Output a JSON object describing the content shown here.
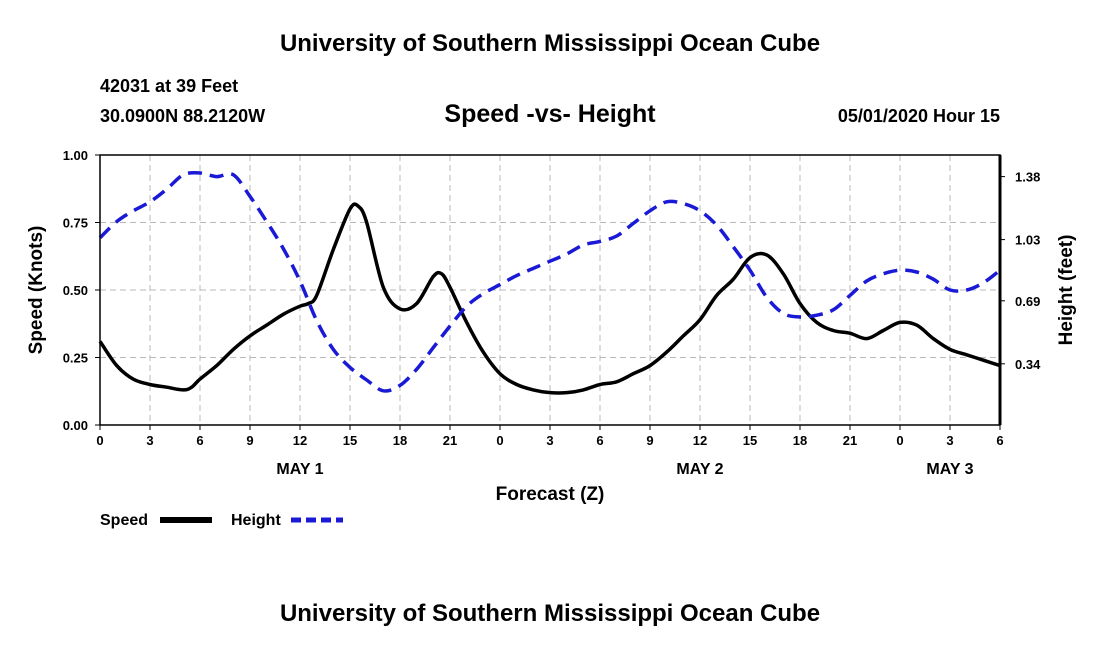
{
  "header": {
    "title": "University of Southern Mississippi Ocean Cube",
    "station": "42031 at 39 Feet",
    "coords": "30.0900N 88.2120W",
    "chart_title": "Speed -vs- Height",
    "datetime": "05/01/2020 Hour 15"
  },
  "footer": {
    "title": "University of Southern Mississippi Ocean Cube"
  },
  "colors": {
    "speed": "#000000",
    "height": "#1a1ad6",
    "grid": "#b8b8b8"
  },
  "chart_data": {
    "type": "line",
    "title": "Speed -vs- Height",
    "xlabel": "Forecast (Z)",
    "ylabel_left": "Speed (Knots)",
    "ylabel_right": "Height (feet)",
    "x_range": [
      0,
      54
    ],
    "x_tick_values": [
      0,
      3,
      6,
      9,
      12,
      15,
      18,
      21,
      24,
      27,
      30,
      33,
      36,
      39,
      42,
      45,
      48,
      51,
      54
    ],
    "x_tick_labels": [
      "0",
      "3",
      "6",
      "9",
      "12",
      "15",
      "18",
      "21",
      "0",
      "3",
      "6",
      "9",
      "12",
      "15",
      "18",
      "21",
      "0",
      "3",
      "6"
    ],
    "day_labels": [
      {
        "label": "MAY 1",
        "x": 12
      },
      {
        "label": "MAY 2",
        "x": 36
      },
      {
        "label": "MAY 3",
        "x": 51
      }
    ],
    "y_left_range": [
      0,
      1
    ],
    "y_left_ticks": [
      "0.00",
      "0.25",
      "0.50",
      "0.75",
      "1.00"
    ],
    "y_left_tick_values": [
      0,
      0.25,
      0.5,
      0.75,
      1.0
    ],
    "y_right_range": [
      0,
      1.5
    ],
    "y_right_ticks": [
      "0.34",
      "0.69",
      "1.03",
      "1.38"
    ],
    "y_right_tick_values": [
      0.34,
      0.69,
      1.03,
      1.38
    ],
    "grid": true,
    "legend": [
      "Speed",
      "Height"
    ],
    "series": [
      {
        "name": "Speed",
        "axis": "left",
        "style": "solid",
        "x": [
          0,
          1,
          2,
          3,
          4,
          5,
          5.5,
          6,
          7,
          8,
          9,
          10,
          11,
          12,
          12.5,
          13,
          14,
          15,
          15.5,
          16,
          17,
          18,
          19,
          20,
          20.5,
          21,
          22,
          23,
          24,
          25,
          26,
          27,
          28,
          29,
          30,
          31,
          32,
          33,
          34,
          35,
          36,
          37,
          38,
          39,
          40,
          41,
          42,
          43,
          44,
          45,
          46,
          47,
          48,
          49,
          50,
          51,
          52,
          53,
          54
        ],
        "values": [
          0.31,
          0.22,
          0.17,
          0.15,
          0.14,
          0.13,
          0.14,
          0.17,
          0.22,
          0.28,
          0.33,
          0.37,
          0.41,
          0.44,
          0.45,
          0.48,
          0.65,
          0.8,
          0.81,
          0.75,
          0.51,
          0.43,
          0.45,
          0.55,
          0.56,
          0.51,
          0.38,
          0.27,
          0.19,
          0.15,
          0.13,
          0.12,
          0.12,
          0.13,
          0.15,
          0.16,
          0.19,
          0.22,
          0.27,
          0.33,
          0.39,
          0.48,
          0.54,
          0.62,
          0.63,
          0.56,
          0.45,
          0.38,
          0.35,
          0.34,
          0.32,
          0.35,
          0.38,
          0.37,
          0.32,
          0.28,
          0.26,
          0.24,
          0.22
        ]
      },
      {
        "name": "Height",
        "axis": "right",
        "style": "dashed",
        "x": [
          0,
          1,
          2,
          3,
          4,
          5,
          6,
          7,
          8,
          9,
          10,
          11,
          12,
          13,
          14,
          15,
          16,
          17,
          18,
          19,
          20,
          21,
          22,
          23,
          24,
          25,
          26,
          27,
          28,
          29,
          30,
          31,
          32,
          33,
          34,
          35,
          36,
          37,
          38,
          39,
          40,
          41,
          42,
          43,
          44,
          45,
          46,
          47,
          48,
          49,
          50,
          51,
          52,
          53,
          54
        ],
        "values": [
          1.04,
          1.13,
          1.19,
          1.24,
          1.31,
          1.39,
          1.4,
          1.38,
          1.39,
          1.27,
          1.13,
          0.98,
          0.8,
          0.58,
          0.42,
          0.32,
          0.25,
          0.19,
          0.22,
          0.31,
          0.43,
          0.55,
          0.66,
          0.73,
          0.78,
          0.83,
          0.87,
          0.91,
          0.95,
          1.0,
          1.02,
          1.05,
          1.12,
          1.19,
          1.24,
          1.23,
          1.19,
          1.11,
          0.99,
          0.86,
          0.71,
          0.62,
          0.6,
          0.61,
          0.64,
          0.72,
          0.8,
          0.84,
          0.86,
          0.85,
          0.81,
          0.75,
          0.75,
          0.79,
          0.86
        ]
      }
    ]
  }
}
